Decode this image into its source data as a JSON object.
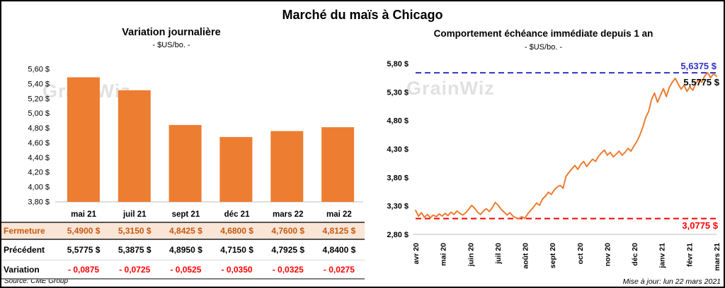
{
  "page_title": "Marché du maïs à Chicago",
  "watermark": "GrainWiz",
  "source_note": "Source: CME Group",
  "update_note": "Mise à jour: lun 22 mars 2021",
  "table": {
    "columns": [
      "mai 21",
      "juil 21",
      "sept 21",
      "déc 21",
      "mars 22",
      "mai 22"
    ],
    "rows": [
      {
        "label": "Fermeture",
        "values": [
          "5,4900  $",
          "5,3150  $",
          "4,8425  $",
          "4,6800  $",
          "4,7600  $",
          "4,8125  $"
        ]
      },
      {
        "label": "Précédent",
        "values": [
          "5,5775  $",
          "5,3875  $",
          "4,8950  $",
          "4,7150  $",
          "4,7925  $",
          "4,8400  $"
        ]
      },
      {
        "label": "Variation",
        "values": [
          "- 0,0875",
          "- 0,0725",
          "- 0,0525",
          "- 0,0350",
          "- 0,0325",
          "- 0,0275"
        ]
      }
    ]
  },
  "chart_data": [
    {
      "type": "bar",
      "title": "Variation  journalière",
      "subtitle": "- $US/bo. -",
      "categories": [
        "mai 21",
        "juil 21",
        "sept 21",
        "déc 21",
        "mars 22",
        "mai 22"
      ],
      "values": [
        5.49,
        5.315,
        4.8425,
        4.68,
        4.76,
        4.8125
      ],
      "ylim": [
        3.8,
        5.6
      ],
      "ytick_step": 0.2,
      "ytick_labels": [
        "3,80 $",
        "4,00 $",
        "4,20 $",
        "4,40 $",
        "4,60 $",
        "4,80 $",
        "5,00 $",
        "5,20 $",
        "5,40 $",
        "5,60 $"
      ],
      "bar_color": "#ED7D31",
      "grid": false,
      "legend": false
    },
    {
      "type": "line",
      "title": "Comportement  échéance  immédiate  depuis 1 an",
      "subtitle": "- $US/bo. -",
      "x_labels": [
        "avr 20",
        "mai 20",
        "juin 20",
        "juil 20",
        "août 20",
        "sept 20",
        "oct 20",
        "nov 20",
        "déc 20",
        "janv 21",
        "févr 21",
        "mars 21"
      ],
      "ylim": [
        2.8,
        5.8
      ],
      "ytick_step": 0.5,
      "ytick_labels": [
        "2,80 $",
        "3,30 $",
        "3,80 $",
        "4,30 $",
        "4,80 $",
        "5,30 $",
        "5,80 $"
      ],
      "line_color": "#ED7D31",
      "max_line": {
        "value": 5.6375,
        "label": "5,6375 $",
        "color": "#3232C8"
      },
      "min_line": {
        "value": 3.0775,
        "label": "3,0775 $",
        "color": "#FF0000"
      },
      "last_point": {
        "value": 5.5775,
        "label": "5,5775 $"
      },
      "grid": false,
      "legend": false,
      "values": [
        3.22,
        3.12,
        3.18,
        3.1,
        3.15,
        3.09,
        3.14,
        3.11,
        3.16,
        3.12,
        3.17,
        3.13,
        3.19,
        3.15,
        3.21,
        3.17,
        3.14,
        3.18,
        3.24,
        3.31,
        3.26,
        3.19,
        3.15,
        3.21,
        3.25,
        3.2,
        3.27,
        3.36,
        3.31,
        3.24,
        3.19,
        3.14,
        3.18,
        3.12,
        3.09,
        3.0775,
        3.11,
        3.08,
        3.16,
        3.22,
        3.28,
        3.35,
        3.31,
        3.42,
        3.47,
        3.54,
        3.5,
        3.58,
        3.63,
        3.66,
        3.61,
        3.82,
        3.89,
        3.95,
        4.01,
        3.94,
        4.03,
        4.08,
        3.99,
        4.06,
        4.12,
        4.08,
        4.17,
        4.23,
        4.28,
        4.19,
        4.24,
        4.16,
        4.21,
        4.26,
        4.19,
        4.24,
        4.31,
        4.26,
        4.35,
        4.43,
        4.54,
        4.68,
        4.85,
        4.96,
        5.17,
        5.28,
        5.12,
        5.24,
        5.36,
        5.22,
        5.38,
        5.47,
        5.54,
        5.44,
        5.35,
        5.42,
        5.31,
        5.39,
        5.33,
        5.45,
        5.52,
        5.47,
        5.58,
        5.6375,
        5.55,
        5.62,
        5.5775
      ]
    }
  ]
}
